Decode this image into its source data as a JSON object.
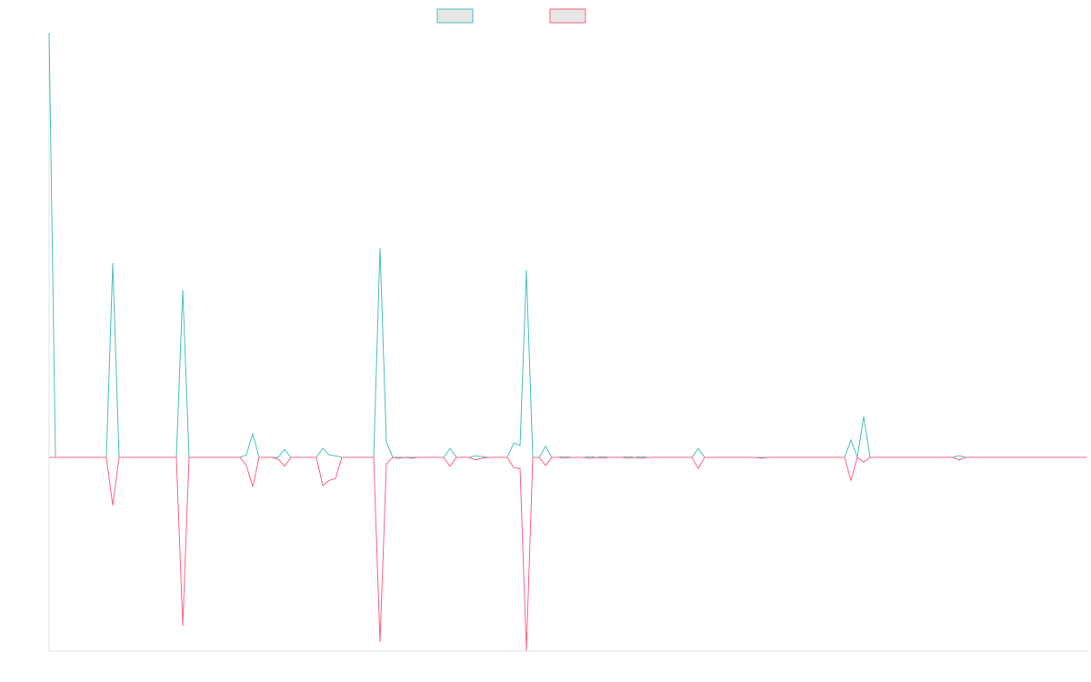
{
  "chart_data": {
    "type": "line",
    "ylim": [
      -45.6,
      100
    ],
    "series": [
      {
        "color": "#4bc0c0",
        "values": [
          100,
          0,
          0,
          0,
          0,
          0,
          0,
          0,
          0,
          0,
          45.8,
          0,
          0,
          0,
          0,
          0,
          0,
          0,
          0,
          0,
          0,
          39.4,
          0,
          0,
          0,
          0,
          0,
          0,
          0,
          0,
          0,
          0.6,
          5.6,
          0,
          0,
          0,
          0,
          1.9,
          0,
          0,
          0,
          0,
          0,
          2.1,
          0.6,
          0.4,
          0,
          0,
          0,
          0,
          0,
          0,
          49.3,
          3.6,
          0,
          0,
          0,
          0,
          0,
          0,
          0,
          0,
          0,
          2.1,
          0,
          0,
          0,
          0.4,
          0.2,
          0,
          0,
          0,
          0,
          3.4,
          2.8,
          44.1,
          0,
          0,
          2.6,
          0,
          0,
          0.2,
          0,
          0,
          0,
          0.2,
          0,
          0.2,
          0,
          0,
          0,
          0.2,
          0,
          0.2,
          0,
          0,
          0,
          0,
          0,
          0,
          0,
          0,
          2.1,
          0,
          0,
          0,
          0,
          0,
          0,
          0,
          0,
          0,
          0,
          0,
          0,
          0,
          0,
          0,
          0,
          0,
          0,
          0,
          0,
          0,
          0,
          0,
          4.1,
          0,
          9.6,
          0,
          0,
          0,
          0,
          0,
          0,
          0,
          0,
          0,
          0,
          0,
          0,
          0,
          0,
          0.4,
          0,
          0,
          0,
          0,
          0,
          0,
          0,
          0,
          0,
          0,
          0,
          0,
          0,
          0,
          0,
          0,
          0,
          0,
          0,
          0
        ]
      },
      {
        "color": "#ff6384",
        "values": [
          0,
          0,
          0,
          0,
          0,
          0,
          0,
          0,
          0,
          0,
          -11.3,
          0,
          0,
          0,
          0,
          0,
          0,
          0,
          0,
          0,
          0,
          -39.6,
          0,
          0,
          0,
          0,
          0,
          0,
          0,
          0,
          0,
          -1.9,
          -6.9,
          0,
          0,
          0,
          -0.4,
          -2.1,
          0,
          0,
          0,
          0,
          0,
          -6.6,
          -5.4,
          -5.0,
          0,
          0,
          0,
          0,
          0,
          0,
          -43.5,
          -1.5,
          0,
          -0.2,
          0,
          -0.2,
          0,
          0,
          0,
          0,
          0,
          -2.1,
          0,
          0,
          0,
          -0.6,
          -0.2,
          0,
          0,
          0,
          0,
          -2.4,
          -2.6,
          -45.6,
          0,
          0,
          -1.9,
          0,
          0,
          -0.2,
          0,
          0,
          0,
          -0.2,
          0,
          -0.2,
          0,
          0,
          0,
          -0.2,
          0,
          -0.2,
          0,
          0,
          0,
          0,
          0,
          0,
          0,
          0,
          -2.6,
          0,
          0,
          0,
          0,
          0,
          0,
          0,
          0,
          0,
          -0.2,
          0,
          0,
          0,
          0,
          0,
          0,
          0,
          0,
          0,
          0,
          0,
          0,
          0,
          -5.4,
          0,
          -1.1,
          0,
          0,
          0,
          0,
          0,
          0,
          0,
          0,
          0,
          0,
          0,
          0,
          0,
          0,
          -0.6,
          0,
          0,
          0,
          0,
          0,
          0,
          0,
          0,
          0,
          0,
          0,
          0,
          0,
          0,
          0,
          0,
          0,
          0,
          0,
          0
        ]
      }
    ]
  }
}
